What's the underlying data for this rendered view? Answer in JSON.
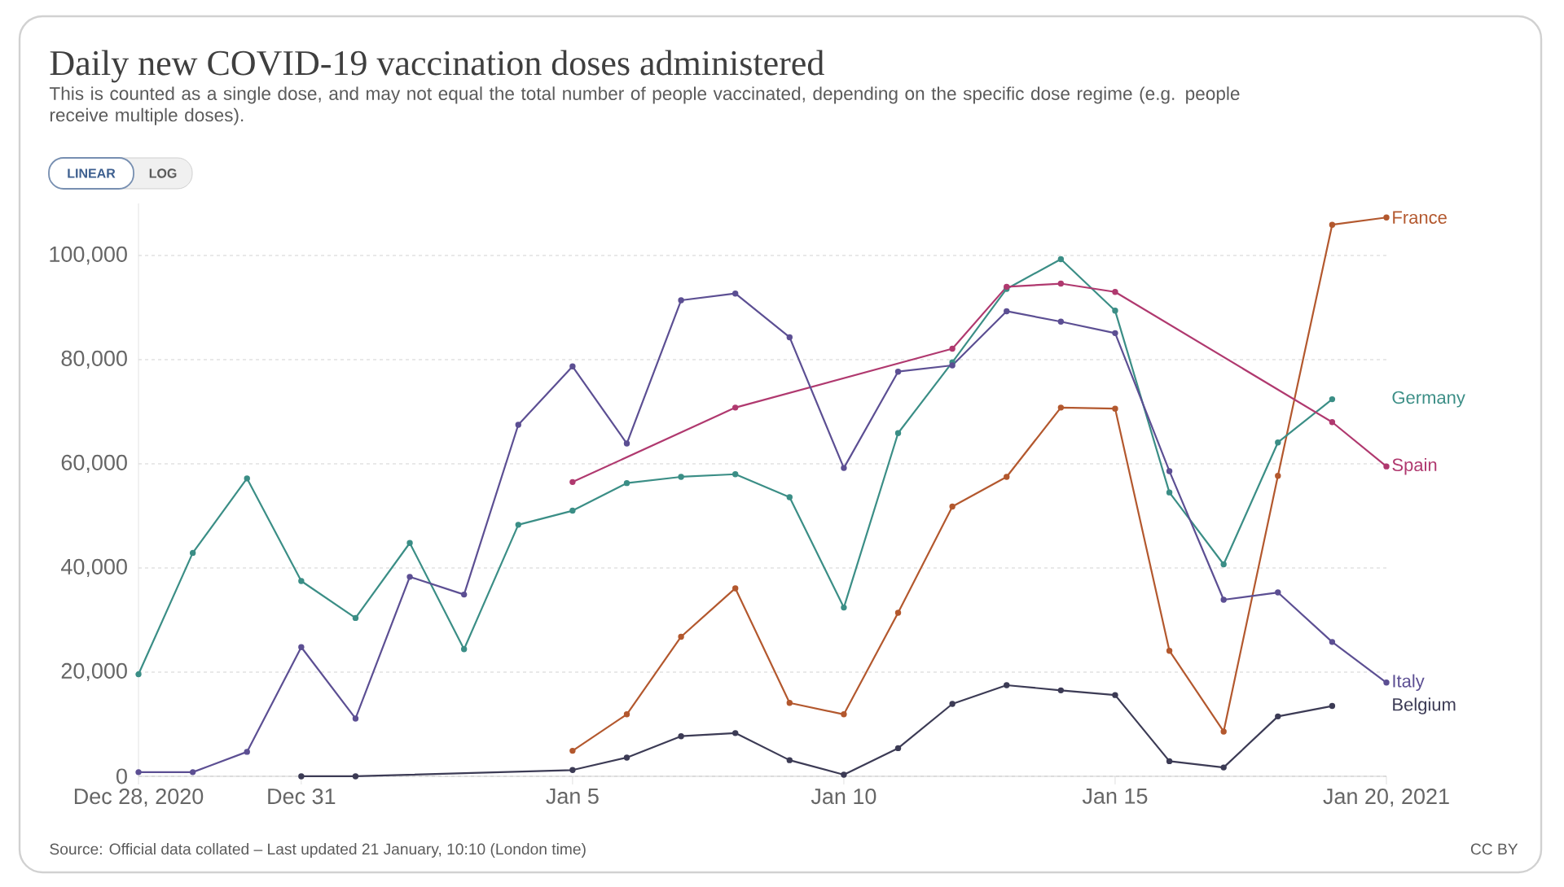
{
  "chart_data": {
    "type": "line",
    "title": "Daily new COVID-19 vaccination doses administered",
    "subtitle": "This is counted as a single dose, and may not equal the total number of people vaccinated, depending on the specific dose regime (e.g. people receive multiple doses).",
    "annotations": [
      "Source: Official data collated – Last updated 21 January, 10:10 (London time)",
      "CC BY",
      "LINEAR",
      "LOG"
    ],
    "xlim": [
      "2020-12-28",
      "2021-01-20"
    ],
    "xticks": [
      {
        "value": "2020-12-28",
        "label": "Dec 28, 2020"
      },
      {
        "value": "2020-12-31",
        "label": "Dec 31"
      },
      {
        "value": "2021-01-05",
        "label": "Jan 5"
      },
      {
        "value": "2021-01-10",
        "label": "Jan 10"
      },
      {
        "value": "2021-01-15",
        "label": "Jan 15"
      },
      {
        "value": "2021-01-20",
        "label": "Jan 20, 2021"
      }
    ],
    "ylim": [
      0,
      110000
    ],
    "yticks": [
      0,
      {
        "value": 20000,
        "label": "20,000"
      },
      {
        "value": 40000,
        "label": "40,000"
      },
      {
        "value": 60000,
        "label": "60,000"
      },
      {
        "value": 80000,
        "label": "80,000"
      },
      {
        "value": 100000,
        "label": "100,000"
      }
    ],
    "grid": "y",
    "marker": "circle",
    "line_style": "solid",
    "series": [
      {
        "name": "France",
        "color": "#b3582e",
        "x": [
          "2021-01-05",
          "2021-01-06",
          "2021-01-07",
          "2021-01-08",
          "2021-01-09",
          "2021-01-10",
          "2021-01-11",
          "2021-01-12",
          "2021-01-13",
          "2021-01-14",
          "2021-01-15",
          "2021-01-16",
          "2021-01-17",
          "2021-01-18",
          "2021-01-19",
          "2021-01-20"
        ],
        "values": [
          4900,
          11900,
          26800,
          36100,
          14100,
          11900,
          31400,
          51800,
          57500,
          70800,
          70600,
          24100,
          8600,
          57700,
          105900,
          107300
        ]
      },
      {
        "name": "Germany",
        "color": "#3b8e86",
        "x": [
          "2020-12-28",
          "2020-12-29",
          "2020-12-30",
          "2020-12-31",
          "2021-01-01",
          "2021-01-02",
          "2021-01-03",
          "2021-01-04",
          "2021-01-05",
          "2021-01-06",
          "2021-01-07",
          "2021-01-08",
          "2021-01-09",
          "2021-01-10",
          "2021-01-11",
          "2021-01-12",
          "2021-01-13",
          "2021-01-14",
          "2021-01-15",
          "2021-01-16",
          "2021-01-17",
          "2021-01-18",
          "2021-01-19"
        ],
        "values": [
          19600,
          42900,
          57200,
          37500,
          30400,
          44800,
          24400,
          48300,
          51000,
          56300,
          57500,
          58000,
          53600,
          32400,
          65900,
          79500,
          93600,
          99300,
          89400,
          54500,
          40700,
          64100,
          72400
        ]
      },
      {
        "name": "Spain",
        "color": "#b0396f",
        "x": [
          "2021-01-05",
          "2021-01-08",
          "2021-01-12",
          "2021-01-13",
          "2021-01-14",
          "2021-01-15",
          "2021-01-19",
          "2021-01-20"
        ],
        "values": [
          56500,
          70800,
          82100,
          94000,
          94600,
          93000,
          68000,
          59500
        ]
      },
      {
        "name": "Italy",
        "color": "#5c4f93",
        "x": [
          "2020-12-28",
          "2020-12-29",
          "2020-12-30",
          "2020-12-31",
          "2021-01-01",
          "2021-01-02",
          "2021-01-03",
          "2021-01-04",
          "2021-01-05",
          "2021-01-06",
          "2021-01-07",
          "2021-01-08",
          "2021-01-09",
          "2021-01-10",
          "2021-01-11",
          "2021-01-12",
          "2021-01-13",
          "2021-01-14",
          "2021-01-15",
          "2021-01-16",
          "2021-01-17",
          "2021-01-18",
          "2021-01-19",
          "2021-01-20"
        ],
        "values": [
          800,
          800,
          4700,
          24800,
          11100,
          38300,
          34900,
          67500,
          78700,
          63900,
          91400,
          92700,
          84300,
          59200,
          77700,
          78900,
          89300,
          87300,
          85100,
          58600,
          33900,
          35300,
          25800,
          18000
        ]
      },
      {
        "name": "Belgium",
        "color": "#3c3b55",
        "x": [
          "2020-12-31",
          "2021-01-01",
          "2021-01-05",
          "2021-01-06",
          "2021-01-07",
          "2021-01-08",
          "2021-01-09",
          "2021-01-10",
          "2021-01-11",
          "2021-01-12",
          "2021-01-13",
          "2021-01-14",
          "2021-01-15",
          "2021-01-16",
          "2021-01-17",
          "2021-01-18",
          "2021-01-19"
        ],
        "values": [
          0,
          0,
          1200,
          3600,
          7700,
          8300,
          3100,
          300,
          5400,
          13900,
          17500,
          16500,
          15600,
          2900,
          1700,
          11500,
          13500
        ]
      }
    ]
  }
}
